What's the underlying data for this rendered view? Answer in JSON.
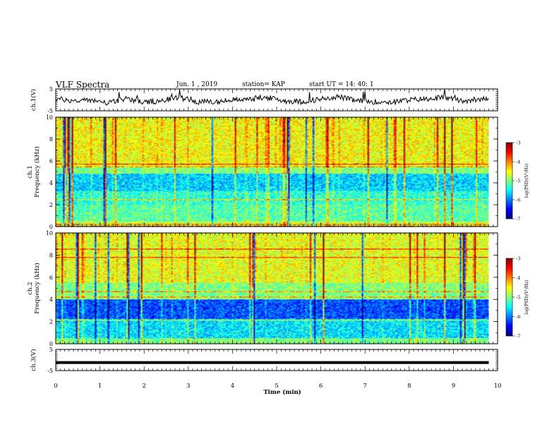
{
  "header": {
    "title": "VLF Spectra",
    "date": "Jun. 1 , 2019",
    "station": "station= KAP",
    "start": "start  UT =  14: 40: 1"
  },
  "chart_data": [
    {
      "type": "line",
      "panel": "ch1-waveform",
      "ylabel": "ch.1(V)",
      "ylim": [
        -5,
        5
      ],
      "yticks": [
        "5",
        "-5"
      ],
      "xlim": [
        0,
        10
      ],
      "series": [
        {
          "x": [
            0,
            0.4,
            0.8,
            1.2,
            1.6,
            2.0,
            2.4,
            2.8,
            3.2,
            3.6,
            4.0,
            4.4,
            4.8,
            5.2,
            5.6,
            6.0,
            6.4,
            6.8,
            7.2,
            7.6,
            8.0,
            8.4,
            8.8,
            9.2,
            9.6,
            9.8
          ],
          "values": [
            0.5,
            -0.5,
            0,
            -1.5,
            0.8,
            -1.2,
            -0.5,
            1.5,
            -0.8,
            -1,
            0,
            0.8,
            1,
            -0.5,
            -0.8,
            0.5,
            1.5,
            -0.5,
            -0.8,
            -1,
            0,
            0.5,
            1.2,
            -0.5,
            0.5,
            0
          ]
        }
      ]
    },
    {
      "type": "heatmap",
      "panel": "ch1-spectrogram",
      "ylabel": "ch.1\nFrequency (kHz)",
      "ylim": [
        0,
        10
      ],
      "yticks": [
        "0",
        "2",
        "4",
        "6",
        "8",
        "10"
      ],
      "xlim": [
        0,
        10
      ],
      "colorbar": {
        "label": "log(PSD)(V²/Hz)",
        "range": [
          -7,
          -3
        ],
        "ticks": [
          "-3",
          "-4",
          "-5",
          "-6",
          "-7"
        ]
      }
    },
    {
      "type": "heatmap",
      "panel": "ch2-spectrogram",
      "ylabel": "ch.2\nFrequency (kHz)",
      "ylim": [
        0,
        10
      ],
      "yticks": [
        "0",
        "2",
        "4",
        "6",
        "8",
        "10"
      ],
      "xlim": [
        0,
        10
      ],
      "colorbar": {
        "label": "log(PSD)(V²/Hz)",
        "range": [
          -7,
          -3
        ],
        "ticks": [
          "-3",
          "-4",
          "-5",
          "-6",
          "-7"
        ]
      }
    },
    {
      "type": "line",
      "panel": "ch3-waveform",
      "ylabel": "ch.3(V)",
      "ylim": [
        -5,
        5
      ],
      "yticks": [
        "5",
        "-5"
      ],
      "xlim": [
        0,
        10
      ],
      "xticks": [
        "0",
        "1",
        "2",
        "3",
        "4",
        "5",
        "6",
        "7",
        "8",
        "9",
        "10"
      ],
      "xlabel": "Time (min)",
      "series": [
        {
          "x": [
            0,
            9.8
          ],
          "values": [
            -1.2,
            -1.2
          ]
        }
      ]
    }
  ]
}
